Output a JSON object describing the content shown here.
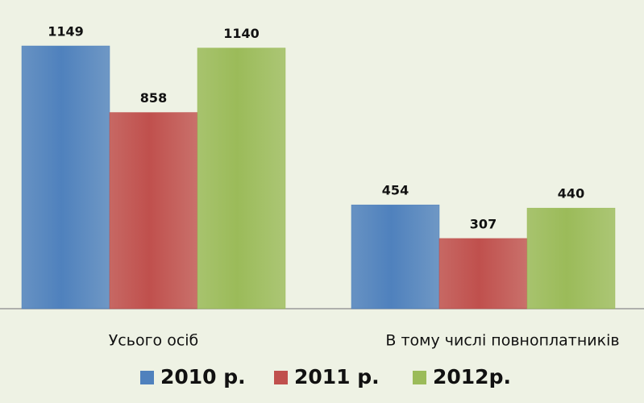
{
  "chart_data": {
    "type": "bar",
    "categories": [
      "Усього осіб",
      "В тому числі повноплатників"
    ],
    "series": [
      {
        "name": "2010 р.",
        "color": "#4f81bd",
        "values": [
          1149,
          454
        ]
      },
      {
        "name": "2011 р.",
        "color": "#c0504d",
        "values": [
          858,
          307
        ]
      },
      {
        "name": "2012р.",
        "color": "#9bbb59",
        "values": [
          1140,
          440
        ]
      }
    ]
  }
}
